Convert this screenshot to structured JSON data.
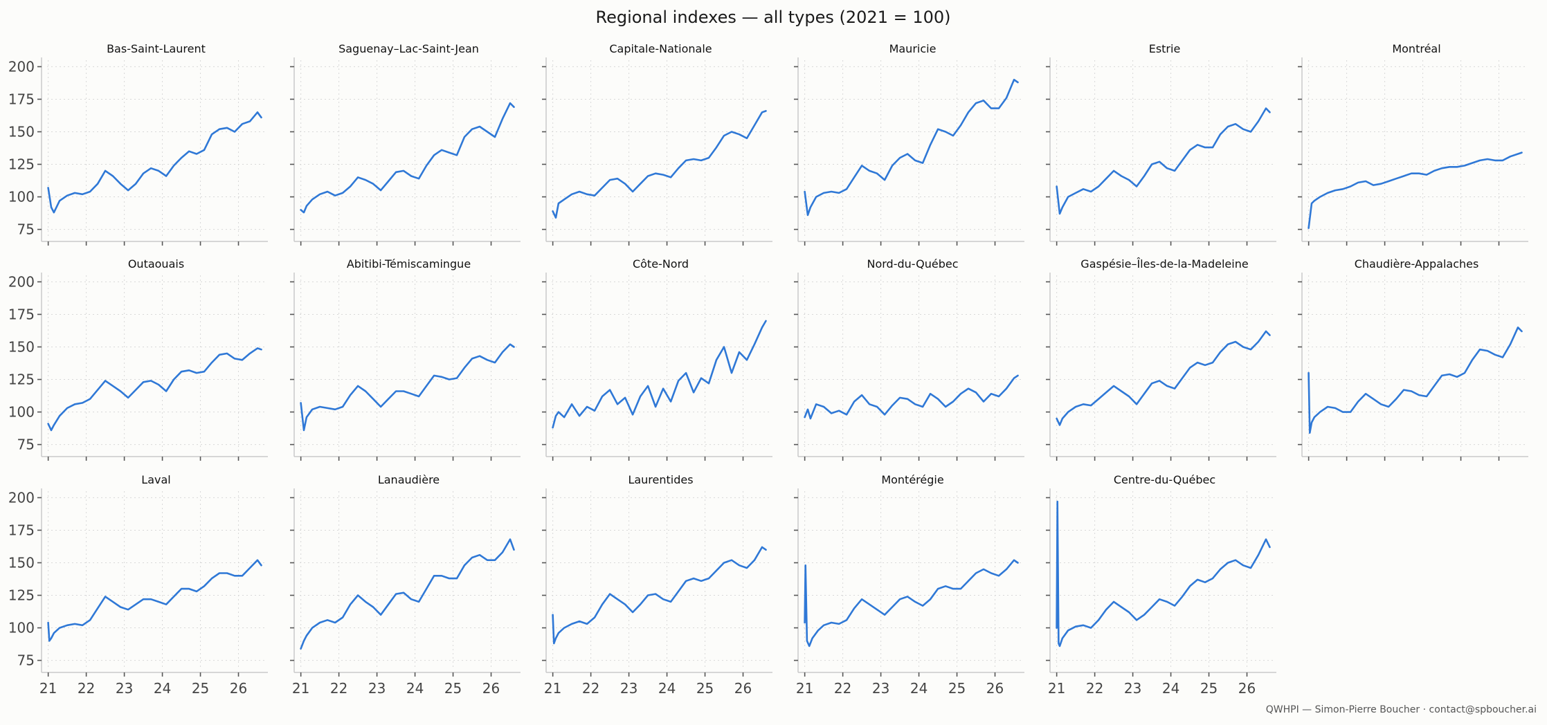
{
  "figure": {
    "title": "Regional indexes — all types (2021 = 100)",
    "footer": "QWHPI — Simon-Pierre Boucher · contact@spboucher.ai",
    "line_color": "#2f78d6"
  },
  "chart_data": {
    "type": "line",
    "layout": {
      "rows": 3,
      "cols": 6,
      "sharex": true,
      "sharey": true
    },
    "x_ticks": [
      21,
      22,
      23,
      24,
      25,
      26
    ],
    "x_tick_labels": [
      "21",
      "22",
      "23",
      "24",
      "25",
      "26"
    ],
    "xlim": [
      20.97,
      26.7
    ],
    "y_ticks": [
      75,
      100,
      125,
      150,
      175,
      200
    ],
    "ylim": [
      70,
      205
    ],
    "grid": true,
    "panels": [
      {
        "title": "Bas-Saint-Laurent",
        "x": [
          21.0,
          21.08,
          21.15,
          21.3,
          21.5,
          21.7,
          21.9,
          22.1,
          22.3,
          22.5,
          22.7,
          22.9,
          23.1,
          23.3,
          23.5,
          23.7,
          23.9,
          24.1,
          24.3,
          24.5,
          24.7,
          24.9,
          25.1,
          25.3,
          25.5,
          25.7,
          25.9,
          26.1,
          26.3,
          26.5,
          26.6
        ],
        "y": [
          107,
          92,
          88,
          97,
          101,
          103,
          102,
          104,
          110,
          120,
          116,
          110,
          105,
          110,
          118,
          122,
          120,
          116,
          124,
          130,
          135,
          133,
          136,
          148,
          152,
          153,
          150,
          156,
          158,
          165,
          161
        ]
      },
      {
        "title": "Saguenay–Lac-Saint-Jean",
        "x": [
          21.0,
          21.08,
          21.15,
          21.3,
          21.5,
          21.7,
          21.9,
          22.1,
          22.3,
          22.5,
          22.7,
          22.9,
          23.1,
          23.3,
          23.5,
          23.7,
          23.9,
          24.1,
          24.3,
          24.5,
          24.7,
          24.9,
          25.1,
          25.3,
          25.5,
          25.7,
          25.9,
          26.1,
          26.3,
          26.5,
          26.6
        ],
        "y": [
          90,
          88,
          93,
          98,
          102,
          104,
          101,
          103,
          108,
          115,
          113,
          110,
          105,
          112,
          119,
          120,
          116,
          114,
          124,
          132,
          136,
          134,
          132,
          146,
          152,
          154,
          150,
          146,
          160,
          172,
          169
        ]
      },
      {
        "title": "Capitale-Nationale",
        "x": [
          21.0,
          21.08,
          21.15,
          21.3,
          21.5,
          21.7,
          21.9,
          22.1,
          22.3,
          22.5,
          22.7,
          22.9,
          23.1,
          23.3,
          23.5,
          23.7,
          23.9,
          24.1,
          24.3,
          24.5,
          24.7,
          24.9,
          25.1,
          25.3,
          25.5,
          25.7,
          25.9,
          26.1,
          26.3,
          26.5,
          26.6
        ],
        "y": [
          89,
          84,
          95,
          98,
          102,
          104,
          102,
          101,
          107,
          113,
          114,
          110,
          104,
          110,
          116,
          118,
          117,
          115,
          122,
          128,
          129,
          128,
          130,
          138,
          147,
          150,
          148,
          145,
          155,
          165,
          166
        ]
      },
      {
        "title": "Mauricie",
        "x": [
          21.0,
          21.08,
          21.15,
          21.3,
          21.5,
          21.7,
          21.9,
          22.1,
          22.3,
          22.5,
          22.7,
          22.9,
          23.1,
          23.3,
          23.5,
          23.7,
          23.9,
          24.1,
          24.3,
          24.5,
          24.7,
          24.9,
          25.1,
          25.3,
          25.5,
          25.7,
          25.9,
          26.1,
          26.3,
          26.5,
          26.6
        ],
        "y": [
          104,
          86,
          92,
          100,
          103,
          104,
          103,
          106,
          115,
          124,
          120,
          118,
          113,
          124,
          130,
          133,
          128,
          126,
          140,
          152,
          150,
          147,
          155,
          165,
          172,
          174,
          168,
          168,
          176,
          190,
          188
        ]
      },
      {
        "title": "Estrie",
        "x": [
          21.0,
          21.08,
          21.15,
          21.3,
          21.5,
          21.7,
          21.9,
          22.1,
          22.3,
          22.5,
          22.7,
          22.9,
          23.1,
          23.3,
          23.5,
          23.7,
          23.9,
          24.1,
          24.3,
          24.5,
          24.7,
          24.9,
          25.1,
          25.3,
          25.5,
          25.7,
          25.9,
          26.1,
          26.3,
          26.5,
          26.6
        ],
        "y": [
          108,
          87,
          92,
          100,
          103,
          106,
          104,
          108,
          114,
          120,
          116,
          113,
          108,
          116,
          125,
          127,
          122,
          120,
          128,
          136,
          140,
          138,
          138,
          148,
          154,
          156,
          152,
          150,
          158,
          168,
          165
        ]
      },
      {
        "title": "Montréal",
        "x": [
          21.0,
          21.08,
          21.15,
          21.3,
          21.5,
          21.7,
          21.9,
          22.1,
          22.3,
          22.5,
          22.7,
          22.9,
          23.1,
          23.3,
          23.5,
          23.7,
          23.9,
          24.1,
          24.3,
          24.5,
          24.7,
          24.9,
          25.1,
          25.3,
          25.5,
          25.7,
          25.9,
          26.1,
          26.3,
          26.5,
          26.6
        ],
        "y": [
          76,
          95,
          97,
          100,
          103,
          105,
          106,
          108,
          111,
          112,
          109,
          110,
          112,
          114,
          116,
          118,
          118,
          117,
          120,
          122,
          123,
          123,
          124,
          126,
          128,
          129,
          128,
          128,
          131,
          133,
          134
        ]
      },
      {
        "title": "Outaouais",
        "x": [
          21.0,
          21.08,
          21.15,
          21.3,
          21.5,
          21.7,
          21.9,
          22.1,
          22.3,
          22.5,
          22.7,
          22.9,
          23.1,
          23.3,
          23.5,
          23.7,
          23.9,
          24.1,
          24.3,
          24.5,
          24.7,
          24.9,
          25.1,
          25.3,
          25.5,
          25.7,
          25.9,
          26.1,
          26.3,
          26.5,
          26.6
        ],
        "y": [
          91,
          86,
          90,
          97,
          103,
          106,
          107,
          110,
          117,
          124,
          120,
          116,
          111,
          117,
          123,
          124,
          121,
          116,
          125,
          131,
          132,
          130,
          131,
          138,
          144,
          145,
          141,
          140,
          145,
          149,
          148
        ]
      },
      {
        "title": "Abitibi-Témiscamingue",
        "x": [
          21.0,
          21.08,
          21.15,
          21.3,
          21.5,
          21.7,
          21.9,
          22.1,
          22.3,
          22.5,
          22.7,
          22.9,
          23.1,
          23.3,
          23.5,
          23.7,
          23.9,
          24.1,
          24.3,
          24.5,
          24.7,
          24.9,
          25.1,
          25.3,
          25.5,
          25.7,
          25.9,
          26.1,
          26.3,
          26.5,
          26.6
        ],
        "y": [
          107,
          86,
          96,
          102,
          104,
          103,
          102,
          104,
          113,
          120,
          116,
          110,
          104,
          110,
          116,
          116,
          114,
          112,
          120,
          128,
          127,
          125,
          126,
          134,
          141,
          143,
          140,
          138,
          146,
          152,
          150
        ]
      },
      {
        "title": "Côte-Nord",
        "x": [
          21.0,
          21.08,
          21.15,
          21.3,
          21.5,
          21.7,
          21.9,
          22.1,
          22.3,
          22.5,
          22.7,
          22.9,
          23.1,
          23.3,
          23.5,
          23.7,
          23.9,
          24.1,
          24.3,
          24.5,
          24.7,
          24.9,
          25.1,
          25.3,
          25.5,
          25.7,
          25.9,
          26.1,
          26.3,
          26.5,
          26.6
        ],
        "y": [
          88,
          97,
          100,
          96,
          106,
          97,
          104,
          101,
          112,
          117,
          106,
          111,
          98,
          112,
          120,
          104,
          118,
          108,
          124,
          130,
          115,
          126,
          122,
          140,
          150,
          130,
          146,
          140,
          152,
          165,
          170
        ]
      },
      {
        "title": "Nord-du-Québec",
        "x": [
          21.0,
          21.08,
          21.15,
          21.3,
          21.5,
          21.7,
          21.9,
          22.1,
          22.3,
          22.5,
          22.7,
          22.9,
          23.1,
          23.3,
          23.5,
          23.7,
          23.9,
          24.1,
          24.3,
          24.5,
          24.7,
          24.9,
          25.1,
          25.3,
          25.5,
          25.7,
          25.9,
          26.1,
          26.3,
          26.5,
          26.6
        ],
        "y": [
          96,
          102,
          95,
          106,
          104,
          99,
          101,
          98,
          108,
          113,
          106,
          104,
          98,
          105,
          111,
          110,
          106,
          104,
          114,
          110,
          104,
          108,
          114,
          118,
          115,
          108,
          114,
          112,
          118,
          126,
          128
        ]
      },
      {
        "title": "Gaspésie–Îles-de-la-Madeleine",
        "x": [
          21.0,
          21.08,
          21.15,
          21.3,
          21.5,
          21.7,
          21.9,
          22.1,
          22.3,
          22.5,
          22.7,
          22.9,
          23.1,
          23.3,
          23.5,
          23.7,
          23.9,
          24.1,
          24.3,
          24.5,
          24.7,
          24.9,
          25.1,
          25.3,
          25.5,
          25.7,
          25.9,
          26.1,
          26.3,
          26.5,
          26.6
        ],
        "y": [
          95,
          90,
          95,
          100,
          104,
          106,
          105,
          110,
          115,
          120,
          116,
          112,
          106,
          114,
          122,
          124,
          120,
          118,
          126,
          134,
          138,
          136,
          138,
          146,
          152,
          154,
          150,
          148,
          154,
          162,
          159
        ]
      },
      {
        "title": "Chaudière-Appalaches",
        "x": [
          21.0,
          21.03,
          21.08,
          21.15,
          21.3,
          21.5,
          21.7,
          21.9,
          22.1,
          22.3,
          22.5,
          22.7,
          22.9,
          23.1,
          23.3,
          23.5,
          23.7,
          23.9,
          24.1,
          24.3,
          24.5,
          24.7,
          24.9,
          25.1,
          25.3,
          25.5,
          25.7,
          25.9,
          26.1,
          26.3,
          26.5,
          26.6
        ],
        "y": [
          130,
          84,
          92,
          96,
          100,
          104,
          103,
          100,
          100,
          108,
          114,
          110,
          106,
          104,
          110,
          117,
          116,
          113,
          112,
          120,
          128,
          129,
          127,
          130,
          140,
          148,
          147,
          144,
          142,
          152,
          165,
          162
        ]
      },
      {
        "title": "Laval",
        "x": [
          21.0,
          21.03,
          21.08,
          21.15,
          21.3,
          21.5,
          21.7,
          21.9,
          22.1,
          22.3,
          22.5,
          22.7,
          22.9,
          23.1,
          23.3,
          23.5,
          23.7,
          23.9,
          24.1,
          24.3,
          24.5,
          24.7,
          24.9,
          25.1,
          25.3,
          25.5,
          25.7,
          25.9,
          26.1,
          26.3,
          26.5,
          26.6
        ],
        "y": [
          104,
          90,
          92,
          96,
          100,
          102,
          103,
          102,
          106,
          115,
          124,
          120,
          116,
          114,
          118,
          122,
          122,
          120,
          118,
          124,
          130,
          130,
          128,
          132,
          138,
          142,
          142,
          140,
          140,
          146,
          152,
          148
        ]
      },
      {
        "title": "Lanaudière",
        "x": [
          21.0,
          21.08,
          21.15,
          21.3,
          21.5,
          21.7,
          21.9,
          22.1,
          22.3,
          22.5,
          22.7,
          22.9,
          23.1,
          23.3,
          23.5,
          23.7,
          23.9,
          24.1,
          24.3,
          24.5,
          24.7,
          24.9,
          25.1,
          25.3,
          25.5,
          25.7,
          25.9,
          26.1,
          26.3,
          26.5,
          26.6
        ],
        "y": [
          84,
          90,
          94,
          100,
          104,
          106,
          104,
          108,
          118,
          125,
          120,
          116,
          110,
          118,
          126,
          127,
          122,
          120,
          130,
          140,
          140,
          138,
          138,
          148,
          154,
          156,
          152,
          152,
          158,
          168,
          160
        ]
      },
      {
        "title": "Laurentides",
        "x": [
          21.0,
          21.03,
          21.08,
          21.15,
          21.3,
          21.5,
          21.7,
          21.9,
          22.1,
          22.3,
          22.5,
          22.7,
          22.9,
          23.1,
          23.3,
          23.5,
          23.7,
          23.9,
          24.1,
          24.3,
          24.5,
          24.7,
          24.9,
          25.1,
          25.3,
          25.5,
          25.7,
          25.9,
          26.1,
          26.3,
          26.5,
          26.6
        ],
        "y": [
          110,
          88,
          92,
          96,
          100,
          103,
          105,
          103,
          108,
          118,
          126,
          122,
          118,
          112,
          118,
          125,
          126,
          122,
          120,
          128,
          136,
          138,
          136,
          138,
          144,
          150,
          152,
          148,
          146,
          152,
          162,
          160
        ]
      },
      {
        "title": "Montérégie",
        "x": [
          21.0,
          21.02,
          21.06,
          21.12,
          21.2,
          21.35,
          21.5,
          21.7,
          21.9,
          22.1,
          22.3,
          22.5,
          22.7,
          22.9,
          23.1,
          23.3,
          23.5,
          23.7,
          23.9,
          24.1,
          24.3,
          24.5,
          24.7,
          24.9,
          25.1,
          25.3,
          25.5,
          25.7,
          25.9,
          26.1,
          26.3,
          26.5,
          26.6
        ],
        "y": [
          104,
          148,
          90,
          86,
          92,
          98,
          102,
          104,
          103,
          106,
          115,
          122,
          118,
          114,
          110,
          116,
          122,
          124,
          120,
          117,
          122,
          130,
          132,
          130,
          130,
          136,
          142,
          145,
          142,
          140,
          145,
          152,
          150
        ]
      },
      {
        "title": "Centre-du-Québec",
        "x": [
          21.0,
          21.02,
          21.05,
          21.08,
          21.15,
          21.3,
          21.5,
          21.7,
          21.9,
          22.1,
          22.3,
          22.5,
          22.7,
          22.9,
          23.1,
          23.3,
          23.5,
          23.7,
          23.9,
          24.1,
          24.3,
          24.5,
          24.7,
          24.9,
          25.1,
          25.3,
          25.5,
          25.7,
          25.9,
          26.1,
          26.3,
          26.5,
          26.6
        ],
        "y": [
          100,
          197,
          88,
          86,
          92,
          98,
          101,
          102,
          100,
          106,
          114,
          120,
          116,
          112,
          106,
          110,
          116,
          122,
          120,
          117,
          124,
          132,
          137,
          135,
          138,
          145,
          150,
          152,
          148,
          146,
          156,
          168,
          162
        ]
      }
    ]
  }
}
